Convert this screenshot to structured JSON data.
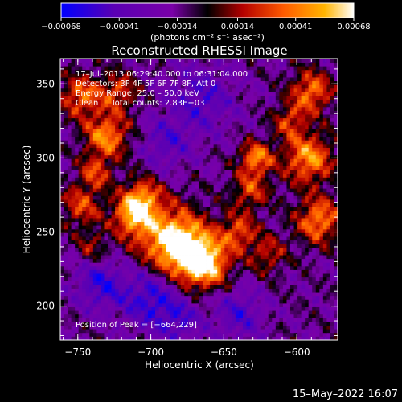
{
  "chart_data": {
    "type": "heatmap",
    "title": "Reconstructed RHESSI Image",
    "xlabel": "Heliocentric X (arcsec)",
    "ylabel": "Heliocentric Y (arcsec)",
    "xlim": [
      -762,
      -572
    ],
    "ylim": [
      177,
      367
    ],
    "x_ticks": [
      -750,
      -700,
      -650,
      -600
    ],
    "y_ticks": [
      200,
      250,
      300,
      350
    ],
    "x_tick_labels": [
      "−750",
      "−700",
      "−650",
      "−600"
    ],
    "y_tick_labels": [
      "200",
      "250",
      "300",
      "350"
    ],
    "colorbar": {
      "range": [
        -0.00068,
        0.00068
      ],
      "ticks": [
        -0.00068,
        -0.00041,
        -0.00014,
        0.00014,
        0.00041,
        0.00068
      ],
      "tick_labels": [
        "−0.00068",
        "−0.00041",
        "−0.00014",
        "0.00014",
        "0.00041",
        "0.00068"
      ],
      "units": "(photons cm⁻² s⁻¹ asec⁻²)",
      "colormap": [
        "#0000ff",
        "#5a00b4",
        "#7a00a8",
        "#000000",
        "#b40000",
        "#ff5a00",
        "#ffb400",
        "#ffffff"
      ]
    },
    "peak": [
      -664,
      229
    ],
    "blobs": [
      {
        "x": -676,
        "y": 238,
        "a": 1.0,
        "s": 14
      },
      {
        "x": -662,
        "y": 228,
        "a": 0.95,
        "s": 11
      },
      {
        "x": -690,
        "y": 248,
        "a": 0.7,
        "s": 16
      },
      {
        "x": -712,
        "y": 262,
        "a": 0.9,
        "s": 10
      },
      {
        "x": -705,
        "y": 275,
        "a": 0.6,
        "s": 9
      },
      {
        "x": -730,
        "y": 315,
        "a": 0.85,
        "s": 11
      },
      {
        "x": -748,
        "y": 342,
        "a": 0.75,
        "s": 10
      },
      {
        "x": -722,
        "y": 345,
        "a": 0.6,
        "s": 9
      },
      {
        "x": -738,
        "y": 290,
        "a": 0.55,
        "s": 8
      },
      {
        "x": -748,
        "y": 268,
        "a": 0.6,
        "s": 10
      },
      {
        "x": -640,
        "y": 250,
        "a": 0.65,
        "s": 9
      },
      {
        "x": -632,
        "y": 278,
        "a": 0.6,
        "s": 9
      },
      {
        "x": -628,
        "y": 300,
        "a": 0.85,
        "s": 8
      },
      {
        "x": -592,
        "y": 300,
        "a": 0.9,
        "s": 12
      },
      {
        "x": -585,
        "y": 258,
        "a": 0.85,
        "s": 11
      },
      {
        "x": -590,
        "y": 345,
        "a": 0.8,
        "s": 10
      },
      {
        "x": -605,
        "y": 325,
        "a": 0.55,
        "s": 8
      },
      {
        "x": -620,
        "y": 235,
        "a": 0.5,
        "s": 9
      },
      {
        "x": -740,
        "y": 240,
        "a": 0.4,
        "s": 8
      },
      {
        "x": -700,
        "y": 205,
        "a": -0.6,
        "s": 14
      },
      {
        "x": -735,
        "y": 215,
        "a": -0.55,
        "s": 12
      },
      {
        "x": -665,
        "y": 340,
        "a": -0.45,
        "s": 16
      },
      {
        "x": -690,
        "y": 310,
        "a": -0.4,
        "s": 12
      },
      {
        "x": -640,
        "y": 195,
        "a": -0.45,
        "s": 12
      },
      {
        "x": -680,
        "y": 190,
        "a": -0.4,
        "s": 10
      }
    ]
  },
  "annotations": {
    "time_range": "17–Jul–2013 06:29:40.000 to 06:31:04.000",
    "detectors": "Detectors: 3F 4F 5F 6F 7F 8F, Att 0",
    "energy_range": "Energy Range: 25.0 – 50.0 keV",
    "clean": "Clean     Total counts: 2.83E+03",
    "peak_position": "Position of Peak = [−664,229]"
  },
  "footer": {
    "timestamp": "15–May–2022 16:07"
  }
}
